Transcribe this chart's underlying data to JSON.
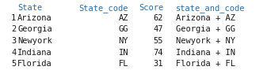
{
  "header": [
    "State",
    "State_code",
    "Score",
    "state_and_code"
  ],
  "rows": [
    [
      "1",
      "Arizona",
      "AZ",
      "62",
      "Arizona + AZ"
    ],
    [
      "2",
      "Georgia",
      "GG",
      "47",
      "Georgia + GG"
    ],
    [
      "3",
      "Newyork",
      "NY",
      "55",
      "Newyork + NY"
    ],
    [
      "4",
      "Indiana",
      "IN",
      "74",
      "Indiana + IN"
    ],
    [
      "5",
      "Florida",
      "FL",
      "31",
      "Florida + FL"
    ]
  ],
  "font_family": "monospace",
  "font_size": 7.5,
  "header_color": "#2E6DA4",
  "row_color": "#1a1a1a",
  "bg_color": "#ffffff",
  "fig_width": 3.37,
  "fig_height": 0.94,
  "dpi": 100
}
